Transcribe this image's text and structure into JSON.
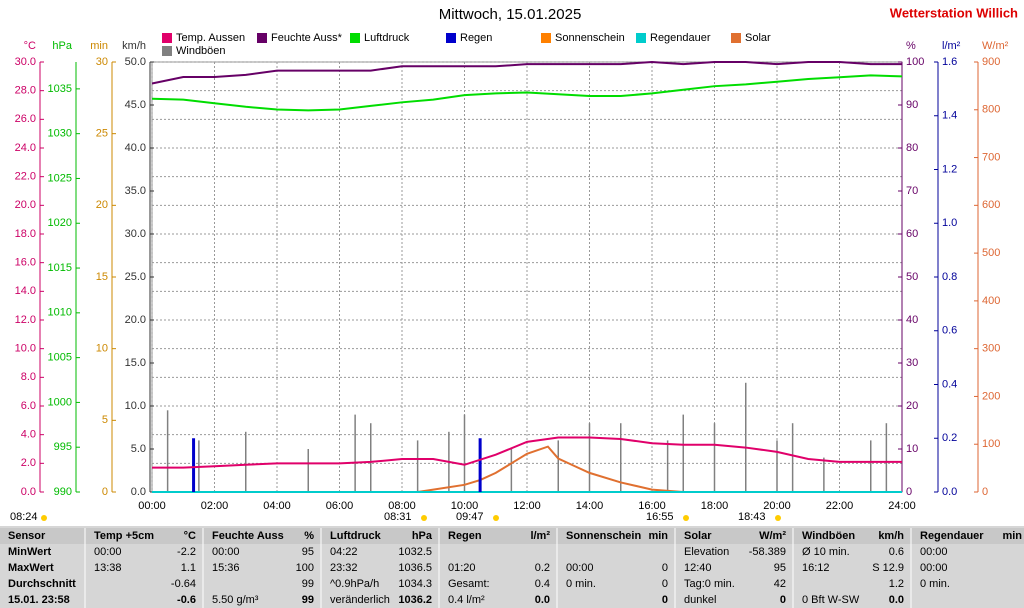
{
  "chart_data": {
    "type": "line",
    "title": "Mittwoch, 15.01.2025",
    "station": "Wetterstation Willich",
    "xlim": [
      0,
      24
    ],
    "xticks": [
      {
        "value": 0,
        "label": "00:00"
      },
      {
        "value": 2,
        "label": "02:00"
      },
      {
        "value": 4,
        "label": "04:00"
      },
      {
        "value": 6,
        "label": "06:00"
      },
      {
        "value": 8,
        "label": "08:00"
      },
      {
        "value": 10,
        "label": "10:00"
      },
      {
        "value": 12,
        "label": "12:00"
      },
      {
        "value": 14,
        "label": "14:00"
      },
      {
        "value": 16,
        "label": "16:00"
      },
      {
        "value": 18,
        "label": "18:00"
      },
      {
        "value": 20,
        "label": "20:00"
      },
      {
        "value": 22,
        "label": "22:00"
      },
      {
        "value": 24,
        "label": "24:00"
      }
    ],
    "grid": true,
    "axes": {
      "c": {
        "unit": "°C",
        "color": "#cc0066",
        "lim": [
          0,
          30
        ],
        "ticks": [
          {
            "value": 0,
            "label": "0.0"
          },
          {
            "value": 2,
            "label": "2.0"
          },
          {
            "value": 4,
            "label": "4.0"
          },
          {
            "value": 6,
            "label": "6.0"
          },
          {
            "value": 8,
            "label": "8.0"
          },
          {
            "value": 10,
            "label": "10.0"
          },
          {
            "value": 12,
            "label": "12.0"
          },
          {
            "value": 14,
            "label": "14.0"
          },
          {
            "value": 16,
            "label": "16.0"
          },
          {
            "value": 18,
            "label": "18.0"
          },
          {
            "value": 20,
            "label": "20.0"
          },
          {
            "value": 22,
            "label": "22.0"
          },
          {
            "value": 24,
            "label": "24.0"
          },
          {
            "value": 26,
            "label": "26.0"
          },
          {
            "value": 28,
            "label": "28.0"
          },
          {
            "value": 30,
            "label": "30.0"
          }
        ]
      },
      "hpa": {
        "unit": "hPa",
        "color": "#00bb00",
        "lim": [
          990,
          1038
        ],
        "ticks": [
          990,
          995,
          1000,
          1005,
          1010,
          1015,
          1020,
          1025,
          1030,
          1035
        ]
      },
      "min": {
        "unit": "min",
        "color": "#cc8800",
        "lim": [
          0,
          30
        ],
        "ticks": [
          0,
          5,
          10,
          15,
          20,
          25,
          30
        ]
      },
      "kmh": {
        "unit": "km/h",
        "color": "#333333",
        "lim": [
          0,
          50
        ],
        "ticks": [
          {
            "value": 0,
            "label": "0.0"
          },
          {
            "value": 5,
            "label": "5.0"
          },
          {
            "value": 10,
            "label": "10.0"
          },
          {
            "value": 15,
            "label": "15.0"
          },
          {
            "value": 20,
            "label": "20.0"
          },
          {
            "value": 25,
            "label": "25.0"
          },
          {
            "value": 30,
            "label": "30.0"
          },
          {
            "value": 35,
            "label": "35.0"
          },
          {
            "value": 40,
            "label": "40.0"
          },
          {
            "value": 45,
            "label": "45.0"
          },
          {
            "value": 50,
            "label": "50.0"
          }
        ]
      },
      "pct": {
        "unit": "%",
        "color": "#660066",
        "lim": [
          0,
          100
        ],
        "ticks": [
          0,
          10,
          20,
          30,
          40,
          50,
          60,
          70,
          80,
          90,
          100
        ]
      },
      "rain": {
        "unit": "l/m²",
        "color": "#000099",
        "lim": [
          0,
          1.6
        ],
        "ticks": [
          {
            "value": 0,
            "label": "0.0"
          },
          0.2,
          0.4,
          0.6,
          0.8,
          {
            "value": 1,
            "label": "1.0"
          },
          1.2,
          1.4,
          1.6
        ]
      },
      "wm2": {
        "unit": "W/m²",
        "color": "#dd6633",
        "lim": [
          0,
          900
        ],
        "ticks": [
          0,
          100,
          200,
          300,
          400,
          500,
          600,
          700,
          800,
          900
        ]
      }
    },
    "series": [
      {
        "name": "Temp. Aussen",
        "color": "#e0006a",
        "type": "line",
        "axis": "c",
        "x": [
          0,
          1,
          2,
          3,
          4,
          5,
          6,
          7,
          8,
          9,
          10,
          11,
          12,
          13,
          14,
          15,
          16,
          17,
          18,
          19,
          20,
          21,
          22,
          23,
          24
        ],
        "values": [
          1.7,
          1.7,
          1.8,
          1.9,
          2.0,
          2.0,
          2.0,
          2.1,
          2.3,
          2.3,
          1.9,
          2.6,
          3.5,
          3.8,
          3.8,
          3.7,
          3.4,
          3.3,
          3.3,
          3.1,
          2.8,
          2.3,
          2.1,
          2.1,
          2.1
        ]
      },
      {
        "name": "Feuchte Auss*",
        "color": "#660066",
        "type": "line",
        "axis": "pct",
        "x": [
          0,
          1,
          2,
          3,
          4,
          5,
          6,
          7,
          8,
          9,
          10,
          11,
          12,
          13,
          14,
          15,
          16,
          17,
          18,
          19,
          20,
          21,
          22,
          23,
          24
        ],
        "values": [
          95,
          96.5,
          96.5,
          97,
          98,
          98,
          98,
          98,
          99,
          99,
          99,
          99,
          99.5,
          99.5,
          99.5,
          99.5,
          100,
          99.5,
          100,
          100,
          99.5,
          100,
          100,
          99.5,
          99.5
        ]
      },
      {
        "name": "Luftdruck",
        "color": "#00dd00",
        "type": "line",
        "axis": "hpa",
        "x": [
          0,
          1,
          2,
          3,
          4,
          5,
          6,
          7,
          8,
          9,
          10,
          11,
          12,
          13,
          14,
          15,
          16,
          17,
          18,
          19,
          20,
          21,
          22,
          23,
          24
        ],
        "values": [
          1033.9,
          1033.8,
          1033.4,
          1033.0,
          1032.7,
          1032.6,
          1032.7,
          1033.1,
          1033.5,
          1033.8,
          1034.3,
          1034.5,
          1034.6,
          1034.4,
          1034.2,
          1034.2,
          1034.5,
          1034.9,
          1035.3,
          1035.5,
          1035.8,
          1036.1,
          1036.3,
          1036.5,
          1036.4
        ]
      },
      {
        "name": "Regen",
        "color": "#0000cc",
        "type": "bar",
        "axis": "rain",
        "x": [
          1.33,
          10.5
        ],
        "values": [
          0.2,
          0.2
        ]
      },
      {
        "name": "Sonnenschein",
        "color": "#ff8000",
        "type": "line",
        "axis": "min",
        "x": [
          0,
          24
        ],
        "values": [
          0,
          0
        ]
      },
      {
        "name": "Regendauer",
        "color": "#00cccc",
        "type": "line",
        "axis": "min",
        "x": [
          0,
          24
        ],
        "values": [
          0,
          0
        ]
      },
      {
        "name": "Solar",
        "color": "#e07030",
        "type": "line",
        "axis": "wm2",
        "x": [
          8.5,
          9,
          10,
          10.5,
          11,
          11.5,
          12,
          12.67,
          13,
          13.5,
          14,
          15,
          16,
          17
        ],
        "values": [
          0,
          5,
          15,
          25,
          40,
          60,
          80,
          95,
          70,
          55,
          40,
          20,
          5,
          0
        ]
      },
      {
        "name": "Windböen",
        "color": "#808080",
        "type": "spike",
        "axis": "kmh",
        "x": [
          0,
          0.5,
          1,
          1.5,
          2,
          2.5,
          3,
          3.5,
          4,
          4.5,
          5,
          5.5,
          6,
          6.5,
          7,
          7.5,
          8,
          8.5,
          9,
          9.5,
          10,
          10.5,
          11,
          11.5,
          12,
          12.5,
          13,
          13.5,
          14,
          14.5,
          15,
          15.5,
          16,
          16.5,
          17,
          17.5,
          18,
          18.5,
          19,
          19.5,
          20,
          20.5,
          21,
          21.5,
          22,
          22.5,
          23,
          23.5,
          24
        ],
        "values": [
          0,
          9.5,
          0,
          6,
          0,
          0,
          7,
          0,
          0,
          0,
          5,
          0,
          0,
          9,
          8,
          0,
          0,
          6,
          0,
          7,
          9,
          0,
          0,
          5,
          0,
          0,
          6,
          0,
          8,
          0,
          8,
          0,
          0,
          6,
          9,
          0,
          8,
          0,
          12.7,
          0,
          6,
          8,
          0,
          4,
          0,
          0,
          6,
          8,
          0
        ]
      }
    ],
    "annotations": [
      "08:24",
      "08:31",
      "09:47",
      "16:55",
      "18:43"
    ]
  },
  "table": {
    "rows": [
      [
        "Sensor",
        "Temp +5cm",
        "°C",
        "Feuchte Auss",
        "%",
        "Luftdruck",
        "hPa",
        "Regen",
        "l/m²",
        "Sonnenschein",
        "min",
        "Solar",
        "W/m²",
        "Windböen",
        "km/h",
        "Regendauer",
        "min"
      ],
      [
        "MinWert",
        "00:00",
        "-2.2",
        "00:00",
        "95",
        "04:22",
        "1032.5",
        null,
        null,
        null,
        null,
        "Elevation",
        "-58.389",
        "Ø 10 min.",
        "0.6",
        "00:00",
        null
      ],
      [
        "MaxWert",
        "13:38",
        "1.1",
        "15:36",
        "100",
        "23:32",
        "1036.5",
        "01:20",
        "0.2",
        "00:00",
        "0",
        "12:40",
        "95",
        "16:12",
        "S 12.9",
        "00:00",
        null
      ],
      [
        "Durchschnitt",
        null,
        "-0.64",
        null,
        "99",
        "^0.9hPa/h",
        "1034.3",
        "Gesamt:",
        "0.4",
        "0 min.",
        "0",
        "Tag:0 min.",
        "42",
        null,
        "1.2",
        "0 min.",
        null
      ],
      [
        "15.01. 23:58",
        null,
        "-0.6",
        "5.50 g/m³",
        "99",
        "veränderlich",
        "1036.2",
        "0.4 l/m²",
        "0.0",
        null,
        "0",
        "dunkel",
        "0",
        "0 Bft W-SW",
        "0.0",
        null,
        null
      ]
    ]
  }
}
